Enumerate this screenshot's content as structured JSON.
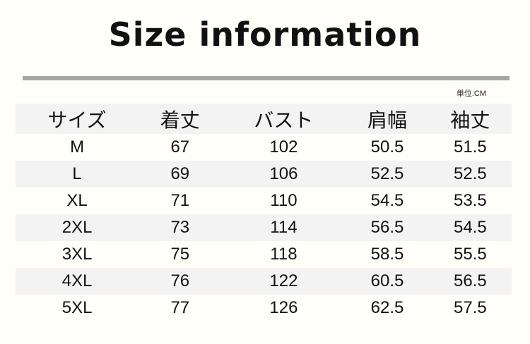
{
  "title": "Size information",
  "unit": "単位:CM",
  "headers": [
    "サイズ",
    "着丈",
    "バスト",
    "肩幅",
    "袖丈"
  ],
  "rows": [
    [
      "M",
      "67",
      "102",
      "50.5",
      "51.5"
    ],
    [
      "L",
      "69",
      "106",
      "52.5",
      "52.5"
    ],
    [
      "XL",
      "71",
      "110",
      "54.5",
      "53.5"
    ],
    [
      "2XL",
      "73",
      "114",
      "56.5",
      "54.5"
    ],
    [
      "3XL",
      "75",
      "118",
      "58.5",
      "55.5"
    ],
    [
      "4XL",
      "76",
      "122",
      "60.5",
      "56.5"
    ],
    [
      "5XL",
      "77",
      "126",
      "62.5",
      "57.5"
    ]
  ]
}
